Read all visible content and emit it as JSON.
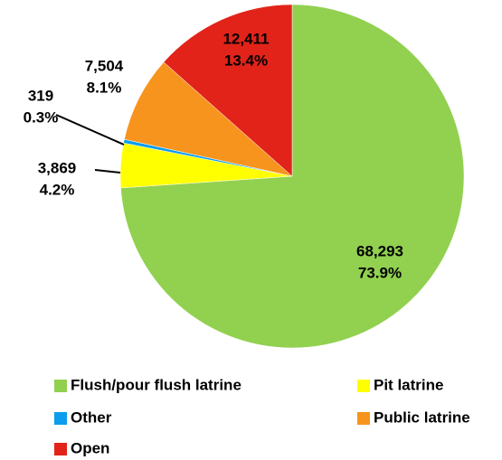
{
  "chart_data": {
    "type": "pie",
    "categories": [
      "Flush/pour flush latrine",
      "Pit latrine",
      "Other",
      "Public latrine",
      "Open"
    ],
    "values": [
      68293,
      3869,
      319,
      7504,
      12411
    ],
    "value_labels": [
      "68,293",
      "3,869",
      "319",
      "7,504",
      "12,411"
    ],
    "percent": [
      73.9,
      4.2,
      0.3,
      8.1,
      13.4
    ],
    "percent_labels": [
      "73.9%",
      "4.2%",
      "0.3%",
      "8.1%",
      "13.4%"
    ],
    "colors": [
      "#92d050",
      "#ffff00",
      "#0b9ded",
      "#f7941d",
      "#e2231a"
    ],
    "legend": "bottom"
  }
}
